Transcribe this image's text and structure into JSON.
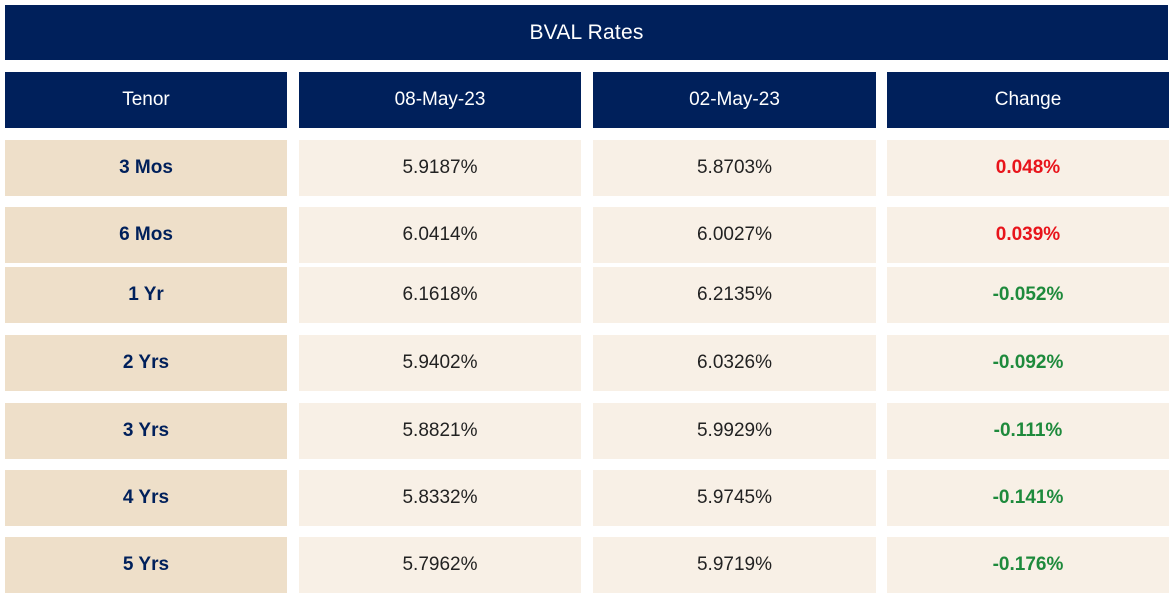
{
  "title": "BVAL Rates",
  "colors": {
    "header_bg": "#00205B",
    "tenor_bg": "#EEDFC9",
    "value_bg": "#F8F0E6",
    "positive_change": "#E8141B",
    "negative_change": "#1E8A3C"
  },
  "columns": [
    "Tenor",
    "08-May-23",
    "02-May-23",
    "Change"
  ],
  "rows": [
    {
      "tenor": "3 Mos",
      "may08": "5.9187%",
      "may02": "5.8703%",
      "change": "0.048%"
    },
    {
      "tenor": "6 Mos",
      "may08": "6.0414%",
      "may02": "6.0027%",
      "change": "0.039%"
    },
    {
      "tenor": "1 Yr",
      "may08": "6.1618%",
      "may02": "6.2135%",
      "change": "-0.052%"
    },
    {
      "tenor": "2 Yrs",
      "may08": "5.9402%",
      "may02": "6.0326%",
      "change": "-0.092%"
    },
    {
      "tenor": "3 Yrs",
      "may08": "5.8821%",
      "may02": "5.9929%",
      "change": "-0.111%"
    },
    {
      "tenor": "4 Yrs",
      "may08": "5.8332%",
      "may02": "5.9745%",
      "change": "-0.141%"
    },
    {
      "tenor": "5 Yrs",
      "may08": "5.7962%",
      "may02": "5.9719%",
      "change": "-0.176%"
    }
  ],
  "chart_data": {
    "type": "table",
    "title": "BVAL Rates",
    "columns": [
      "Tenor",
      "08-May-23",
      "02-May-23",
      "Change"
    ],
    "rows": [
      [
        "3 Mos",
        "5.9187%",
        "5.8703%",
        "0.048%"
      ],
      [
        "6 Mos",
        "6.0414%",
        "6.0027%",
        "0.039%"
      ],
      [
        "1 Yr",
        "6.1618%",
        "6.2135%",
        "-0.052%"
      ],
      [
        "2 Yrs",
        "5.9402%",
        "6.0326%",
        "-0.092%"
      ],
      [
        "3 Yrs",
        "5.8821%",
        "5.9929%",
        "-0.111%"
      ],
      [
        "4 Yrs",
        "5.8332%",
        "5.9745%",
        "-0.141%"
      ],
      [
        "5 Yrs",
        "5.7962%",
        "5.9719%",
        "-0.176%"
      ]
    ]
  }
}
